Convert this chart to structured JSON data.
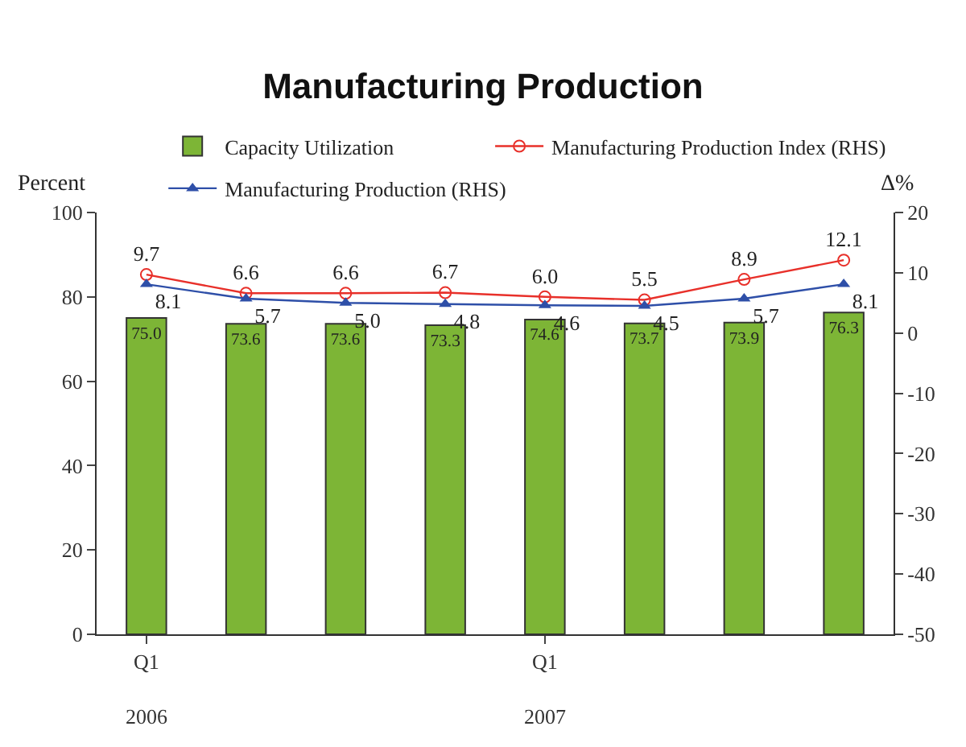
{
  "chart_data": {
    "type": "bar",
    "title": "Manufacturing Production",
    "ylabel": "Percent",
    "y2label": "Δ%",
    "categories": [
      "Q1\n2006",
      null,
      null,
      null,
      "Q1\n2007",
      null,
      null,
      null
    ],
    "series": [
      {
        "name": "Capacity Utilization",
        "color": "#7db536",
        "values": [
          75.0,
          73.6,
          73.6,
          73.3,
          74.6,
          73.7,
          73.9,
          76.3
        ],
        "value_labels": [
          "75.0",
          "73.6",
          "73.6",
          "73.3",
          "74.6",
          "73.7",
          "73.9",
          "76.3"
        ]
      },
      {
        "name": "Manufacturing Production Index (RHS)",
        "type": "line",
        "axis": "y2",
        "marker": "circle",
        "color": "#e8302a",
        "values": [
          9.7,
          6.6,
          6.6,
          6.7,
          6.0,
          5.5,
          8.9,
          12.1
        ],
        "value_labels": [
          "9.7",
          "6.6",
          "6.6",
          "6.7",
          "6.0",
          "5.5",
          "8.9",
          "12.1"
        ]
      },
      {
        "name": "Manufacturing Production (RHS)",
        "type": "line",
        "axis": "y2",
        "marker": "triangle",
        "color": "#2e4fa8",
        "values": [
          8.1,
          5.7,
          5.0,
          4.8,
          4.6,
          4.5,
          5.7,
          8.1
        ],
        "value_labels": [
          "8.1",
          "5.7",
          "5.0",
          "4.8",
          "4.6",
          "4.5",
          "5.7",
          "8.1"
        ]
      }
    ],
    "ylim": [
      0,
      100
    ],
    "yticks": [
      0,
      20,
      40,
      60,
      80,
      100
    ],
    "y2lim": [
      -50,
      20
    ],
    "y2ticks": [
      -50,
      -40,
      -30,
      -20,
      -10,
      0,
      10,
      20
    ],
    "legend": "top"
  }
}
